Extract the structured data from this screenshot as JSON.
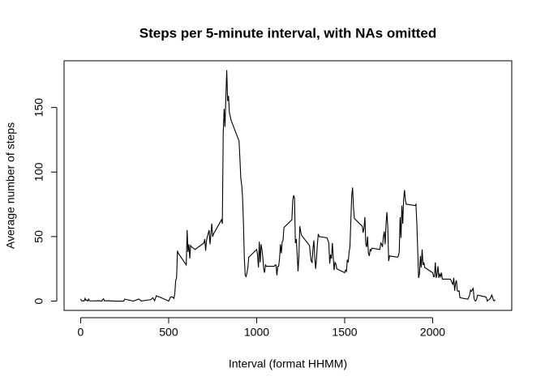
{
  "chart_data": {
    "type": "line",
    "title": "Steps per 5-minute interval, with NAs omitted",
    "x_label": "Interval (format HHMM)",
    "y_label": "Average number of steps",
    "color": "#000000",
    "xlim": [
      -94.2,
      2449.2
    ],
    "ylim": [
      -7.2,
      186.2
    ],
    "xticks": [
      0,
      500,
      1000,
      1500,
      2000
    ],
    "yticks": [
      0,
      50,
      100,
      150
    ],
    "x": [
      0,
      5,
      10,
      15,
      20,
      25,
      30,
      35,
      40,
      45,
      50,
      55,
      100,
      110,
      120,
      125,
      130,
      135,
      150,
      200,
      230,
      245,
      250,
      300,
      330,
      345,
      400,
      410,
      420,
      430,
      440,
      450,
      500,
      510,
      520,
      530,
      535,
      540,
      545,
      550,
      555,
      600,
      605,
      610,
      615,
      620,
      625,
      630,
      650,
      700,
      705,
      710,
      715,
      720,
      730,
      735,
      740,
      745,
      750,
      755,
      800,
      805,
      810,
      815,
      820,
      825,
      830,
      835,
      840,
      845,
      850,
      855,
      900,
      905,
      910,
      915,
      920,
      925,
      930,
      935,
      940,
      945,
      950,
      955,
      1000,
      1005,
      1010,
      1015,
      1020,
      1025,
      1030,
      1035,
      1040,
      1045,
      1050,
      1055,
      1100,
      1105,
      1110,
      1115,
      1120,
      1125,
      1130,
      1135,
      1140,
      1145,
      1150,
      1155,
      1200,
      1205,
      1210,
      1215,
      1220,
      1225,
      1230,
      1235,
      1240,
      1245,
      1250,
      1255,
      1300,
      1305,
      1310,
      1315,
      1320,
      1325,
      1330,
      1335,
      1340,
      1345,
      1350,
      1355,
      1400,
      1405,
      1410,
      1415,
      1420,
      1425,
      1430,
      1435,
      1440,
      1445,
      1450,
      1455,
      1500,
      1505,
      1510,
      1515,
      1520,
      1525,
      1530,
      1535,
      1540,
      1545,
      1550,
      1555,
      1600,
      1605,
      1610,
      1615,
      1620,
      1625,
      1630,
      1635,
      1640,
      1645,
      1650,
      1655,
      1700,
      1705,
      1710,
      1715,
      1720,
      1725,
      1730,
      1735,
      1740,
      1745,
      1750,
      1755,
      1800,
      1805,
      1810,
      1815,
      1820,
      1825,
      1830,
      1835,
      1840,
      1845,
      1850,
      1855,
      1900,
      1905,
      1910,
      1915,
      1920,
      1925,
      1930,
      1935,
      1940,
      1945,
      1950,
      1955,
      2000,
      2005,
      2010,
      2015,
      2020,
      2025,
      2030,
      2035,
      2040,
      2045,
      2050,
      2055,
      2100,
      2105,
      2110,
      2115,
      2120,
      2125,
      2130,
      2135,
      2140,
      2145,
      2150,
      2155,
      2200,
      2205,
      2210,
      2215,
      2220,
      2225,
      2230,
      2235,
      2240,
      2245,
      2250,
      2255,
      2300,
      2305,
      2310,
      2315,
      2320,
      2325,
      2330,
      2335,
      2340,
      2345,
      2350,
      2355
    ],
    "values": [
      1.7,
      0.3,
      0.1,
      0.2,
      0.1,
      2.1,
      0.5,
      0.9,
      0,
      1.5,
      0.3,
      0.1,
      0.3,
      0.2,
      0,
      1.1,
      1.8,
      0.2,
      0.3,
      0,
      0,
      0,
      1.5,
      0,
      1.6,
      0.1,
      1.2,
      2.6,
      0.3,
      4.1,
      3.5,
      3.1,
      0,
      3,
      3.3,
      2.1,
      6,
      16,
      18,
      39,
      37,
      28,
      55,
      38,
      44,
      33,
      43,
      42,
      40,
      45,
      48,
      39,
      47,
      50,
      55,
      44,
      52,
      60,
      50,
      52,
      63,
      60,
      130,
      149,
      135,
      158,
      179,
      155,
      159,
      146,
      143,
      140,
      124,
      110,
      95,
      90,
      80,
      60,
      33,
      20,
      19,
      22,
      26,
      34,
      40,
      36,
      26,
      46,
      30,
      44,
      40,
      34,
      25,
      22,
      28,
      27,
      27,
      28,
      28,
      20,
      27,
      27,
      33,
      44,
      37,
      46,
      47,
      57,
      63,
      78,
      82,
      80,
      45,
      48,
      37,
      23,
      35,
      58,
      54,
      51,
      43,
      36,
      31,
      30,
      41,
      47,
      34,
      25,
      33,
      44,
      52,
      50,
      49,
      47,
      45,
      29,
      36,
      33,
      45,
      34,
      24,
      30,
      29,
      25,
      22,
      24,
      23,
      32,
      30,
      38,
      42,
      62,
      82,
      88,
      73,
      64,
      58,
      53,
      57,
      65,
      44,
      42,
      50,
      37,
      35,
      40,
      39,
      41,
      40,
      45,
      44,
      42,
      50,
      54,
      44,
      60,
      69,
      57,
      31,
      35,
      34,
      35,
      38,
      65,
      49,
      74,
      60,
      79,
      86,
      78,
      75,
      75,
      74,
      75,
      60,
      39,
      18,
      21,
      35,
      26,
      40,
      28,
      30,
      26,
      22,
      19,
      19,
      30,
      18,
      21,
      27,
      18,
      21,
      19,
      22,
      17,
      17,
      16,
      14,
      13,
      18,
      8,
      14,
      16,
      8,
      7.6,
      8,
      2.6,
      1.5,
      3,
      4.8,
      8.5,
      7.5,
      8.7,
      9.8,
      2.2,
      0.3,
      0.1,
      1.6,
      4.6,
      3.3,
      2.8,
      0,
      0.8,
      1,
      1.6,
      2.6,
      4.7,
      3.3,
      0.6,
      0.2,
      1.1
    ]
  }
}
